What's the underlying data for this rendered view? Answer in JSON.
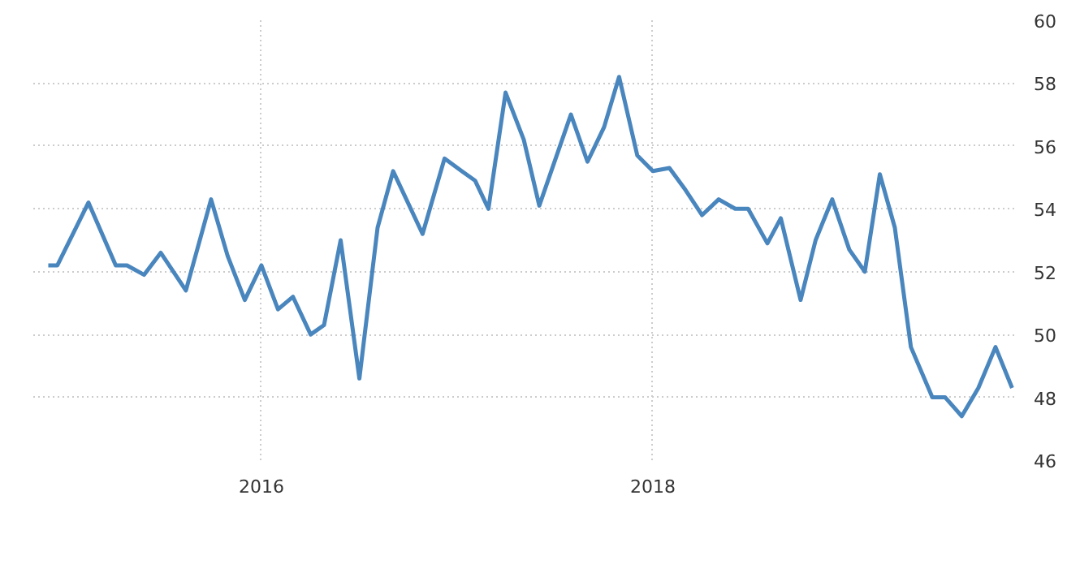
{
  "chart_data": {
    "type": "line",
    "x": [
      "2014-11-29",
      "2014-12-16",
      "2015-02-12",
      "2015-04-04",
      "2015-04-25",
      "2015-05-27",
      "2015-06-27",
      "2015-08-13",
      "2015-09-29",
      "2015-10-30",
      "2015-12-01",
      "2016-01-01",
      "2016-02-01",
      "2016-02-29",
      "2016-04-02",
      "2016-04-27",
      "2016-05-28",
      "2016-07-02",
      "2016-08-05",
      "2016-09-03",
      "2016-10-28",
      "2016-12-08",
      "2017-01-09",
      "2017-02-03",
      "2017-02-28",
      "2017-04-01",
      "2017-05-05",
      "2017-06-03",
      "2017-08-01",
      "2017-09-01",
      "2017-10-02",
      "2017-10-30",
      "2017-12-03",
      "2018-01-01",
      "2018-02-01",
      "2018-03-03",
      "2018-04-03",
      "2018-05-04",
      "2018-06-04",
      "2018-06-28",
      "2018-08-03",
      "2018-08-28",
      "2018-10-04",
      "2018-11-01",
      "2018-12-02",
      "2019-01-03",
      "2019-02-01",
      "2019-03-01",
      "2019-03-29",
      "2019-04-28",
      "2019-06-07",
      "2019-07-01",
      "2019-08-01",
      "2019-09-01",
      "2019-10-03",
      "2019-11-03"
    ],
    "series": [
      {
        "color": "#4a86be",
        "values": [
          52.2,
          52.2,
          54.2,
          52.2,
          52.2,
          51.9,
          52.6,
          51.4,
          54.3,
          52.5,
          51.1,
          52.2,
          50.8,
          51.2,
          50.0,
          50.3,
          53.0,
          48.6,
          53.4,
          55.2,
          53.2,
          55.6,
          55.2,
          54.9,
          54.0,
          57.7,
          56.2,
          54.1,
          57.0,
          55.5,
          56.6,
          58.2,
          55.7,
          55.2,
          55.3,
          54.6,
          53.8,
          54.3,
          54.0,
          54.0,
          52.9,
          53.7,
          51.1,
          53.0,
          54.3,
          52.7,
          52.0,
          55.1,
          53.4,
          49.6,
          48.0,
          48.0,
          47.4,
          48.3,
          49.6,
          48.3
        ]
      }
    ],
    "xlim": [
      "2014-11-01",
      "2019-11-10"
    ],
    "xticks": [
      {
        "value": "2016-01-01",
        "label": "2016"
      },
      {
        "value": "2018-01-01",
        "label": "2018"
      }
    ],
    "ylim": [
      46,
      60
    ],
    "yticks": [
      46,
      48,
      50,
      52,
      54,
      56,
      58,
      60
    ],
    "grid": true,
    "line_style": "solid"
  }
}
